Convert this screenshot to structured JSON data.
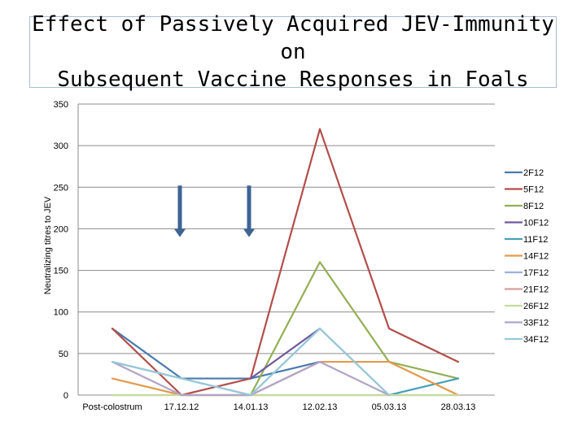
{
  "chart_data": {
    "type": "line",
    "title_line1": "Effect of Passively Acquired JEV-Immunity on",
    "title_line2": "Subsequent Vaccine Responses in Foals",
    "ylabel": "Neutralizing titres to JEV",
    "xlabel": "",
    "ylim": [
      0,
      350
    ],
    "yticks": [
      0,
      50,
      100,
      150,
      200,
      250,
      300,
      350
    ],
    "categories": [
      "Post-colostrum",
      "17.12.12",
      "14.01.13",
      "12.02.13",
      "05.03.13",
      "28.03.13"
    ],
    "grid": "horizontal",
    "legend_position": "right",
    "arrows_at": [
      "17.12.12",
      "14.01.13"
    ],
    "arrow_color": "#3d6493",
    "series": [
      {
        "name": "2F12",
        "color": "#4a7aad",
        "values": [
          80,
          20,
          20,
          40,
          null,
          null
        ]
      },
      {
        "name": "5F12",
        "color": "#b24e4a",
        "values": [
          80,
          0,
          20,
          320,
          80,
          40
        ]
      },
      {
        "name": "8F12",
        "color": "#93af56",
        "values": [
          null,
          null,
          0,
          160,
          40,
          20
        ]
      },
      {
        "name": "10F12",
        "color": "#7059a0",
        "values": [
          null,
          null,
          20,
          80,
          null,
          null
        ]
      },
      {
        "name": "11F12",
        "color": "#45a0b8",
        "values": [
          null,
          null,
          null,
          null,
          0,
          20
        ]
      },
      {
        "name": "14F12",
        "color": "#e49a4c",
        "values": [
          20,
          0,
          0,
          40,
          40,
          0
        ]
      },
      {
        "name": "17F12",
        "color": "#9cb1d6",
        "values": [
          40,
          20,
          0,
          80,
          0,
          null
        ]
      },
      {
        "name": "21F12",
        "color": "#d49f9e",
        "values": [
          0,
          0,
          0,
          0,
          0,
          0
        ]
      },
      {
        "name": "26F12",
        "color": "#c5dc9d",
        "values": [
          0,
          0,
          0,
          0,
          0,
          0
        ]
      },
      {
        "name": "33F12",
        "color": "#b1a4c8",
        "values": [
          40,
          0,
          0,
          40,
          0,
          null
        ]
      },
      {
        "name": "34F12",
        "color": "#96c8d8",
        "values": [
          40,
          20,
          0,
          80,
          0,
          null
        ]
      }
    ]
  }
}
